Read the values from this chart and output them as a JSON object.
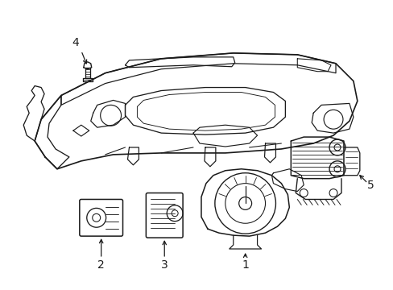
{
  "background_color": "#ffffff",
  "line_color": "#1a1a1a",
  "line_width": 1.1,
  "fig_width": 4.89,
  "fig_height": 3.6,
  "dpi": 100
}
